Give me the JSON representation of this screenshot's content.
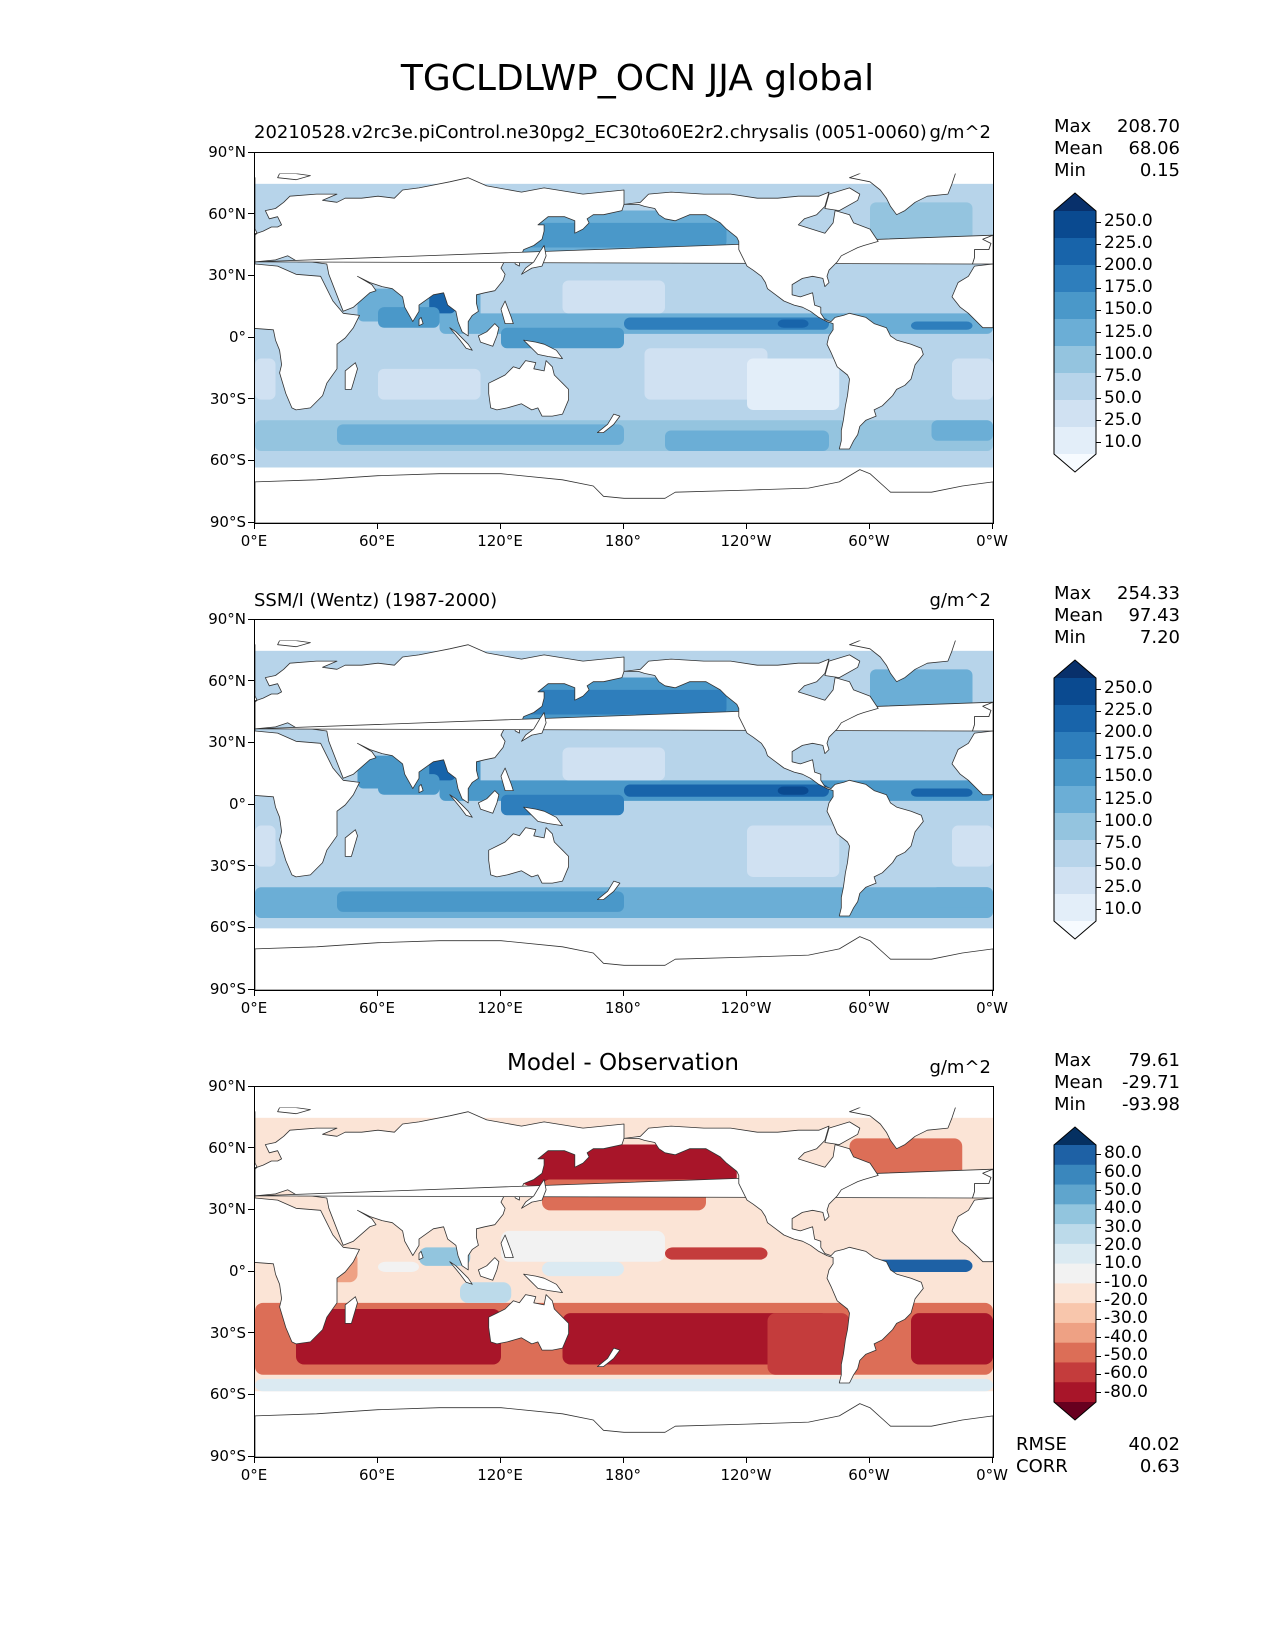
{
  "figure": {
    "title": "TGCLDLWP_OCN JJA global"
  },
  "axes": {
    "x_tick_labels": [
      "0°E",
      "60°E",
      "120°E",
      "180°",
      "120°W",
      "60°W",
      "0°W"
    ],
    "y_tick_labels": [
      "90°N",
      "60°N",
      "30°N",
      "0°",
      "30°S",
      "60°S",
      "90°S"
    ]
  },
  "panels": [
    {
      "id": "model",
      "title_left": "20210528.v2rc3e.piControl.ne30pg2_EC30to60E2r2.chrysalis (0051-0060)",
      "title_center": "",
      "units": "g/m^2",
      "stats": [
        {
          "label": "Max",
          "value": "208.70"
        },
        {
          "label": "Mean",
          "value": "68.06"
        },
        {
          "label": "Min",
          "value": "0.15"
        }
      ],
      "colorbar_labels": [
        "250.0",
        "225.0",
        "200.0",
        "175.0",
        "150.0",
        "125.0",
        "100.0",
        "75.0",
        "50.0",
        "25.0",
        "10.0"
      ]
    },
    {
      "id": "obs",
      "title_left": "SSM/I (Wentz) (1987-2000)",
      "title_center": "",
      "units": "g/m^2",
      "stats": [
        {
          "label": "Max",
          "value": "254.33"
        },
        {
          "label": "Mean",
          "value": "97.43"
        },
        {
          "label": "Min",
          "value": "7.20"
        }
      ],
      "colorbar_labels": [
        "250.0",
        "225.0",
        "200.0",
        "175.0",
        "150.0",
        "125.0",
        "100.0",
        "75.0",
        "50.0",
        "25.0",
        "10.0"
      ]
    },
    {
      "id": "diff",
      "title_left": "",
      "title_center": "Model - Observation",
      "units": "g/m^2",
      "stats": [
        {
          "label": "Max",
          "value": "79.61"
        },
        {
          "label": "Mean",
          "value": "-29.71"
        },
        {
          "label": "Min",
          "value": "-93.98"
        }
      ],
      "colorbar_labels": [
        "80.0",
        "60.0",
        "50.0",
        "40.0",
        "30.0",
        "20.0",
        "10.0",
        "-10.0",
        "-20.0",
        "-30.0",
        "-40.0",
        "-50.0",
        "-60.0",
        "-80.0"
      ],
      "metrics": [
        {
          "label": "RMSE",
          "value": "40.02"
        },
        {
          "label": "CORR",
          "value": "0.63"
        }
      ]
    }
  ],
  "colors": {
    "seq_blues": [
      "#f7fbff",
      "#e3eef9",
      "#d0e1f2",
      "#b7d4ea",
      "#94c4df",
      "#6baed6",
      "#4a98c9",
      "#2e7ebc",
      "#1864aa",
      "#0a4a90",
      "#08306b"
    ],
    "diverging": [
      "#67001f",
      "#a81529",
      "#c43c3c",
      "#dc6e57",
      "#eea184",
      "#f8c6ac",
      "#fbe4d6",
      "#f2f2f2",
      "#dbeaf2",
      "#bcdaea",
      "#92c5de",
      "#5fa5cd",
      "#3a87bd",
      "#1e61a5",
      "#053061"
    ]
  },
  "chart_data": [
    {
      "type": "heatmap",
      "title": "20210528.v2rc3e.piControl.ne30pg2_EC30to60E2r2.chrysalis (0051-0060)",
      "units": "g/m^2",
      "xlim": [
        0,
        360
      ],
      "ylim": [
        -90,
        90
      ],
      "levels": [
        10,
        25,
        50,
        75,
        100,
        125,
        150,
        175,
        200,
        225,
        250
      ],
      "stats": {
        "max": 208.7,
        "mean": 68.06,
        "min": 0.15
      },
      "grid": false
    },
    {
      "type": "heatmap",
      "title": "SSM/I (Wentz) (1987-2000)",
      "units": "g/m^2",
      "xlim": [
        0,
        360
      ],
      "ylim": [
        -90,
        90
      ],
      "levels": [
        10,
        25,
        50,
        75,
        100,
        125,
        150,
        175,
        200,
        225,
        250
      ],
      "stats": {
        "max": 254.33,
        "mean": 97.43,
        "min": 7.2
      },
      "grid": false
    },
    {
      "type": "heatmap",
      "title": "Model - Observation",
      "units": "g/m^2",
      "xlim": [
        0,
        360
      ],
      "ylim": [
        -90,
        90
      ],
      "levels": [
        -80,
        -60,
        -50,
        -40,
        -30,
        -20,
        -10,
        10,
        20,
        30,
        40,
        50,
        60,
        80
      ],
      "stats": {
        "max": 79.61,
        "mean": -29.71,
        "min": -93.98,
        "rmse": 40.02,
        "corr": 0.63
      },
      "grid": false
    }
  ]
}
